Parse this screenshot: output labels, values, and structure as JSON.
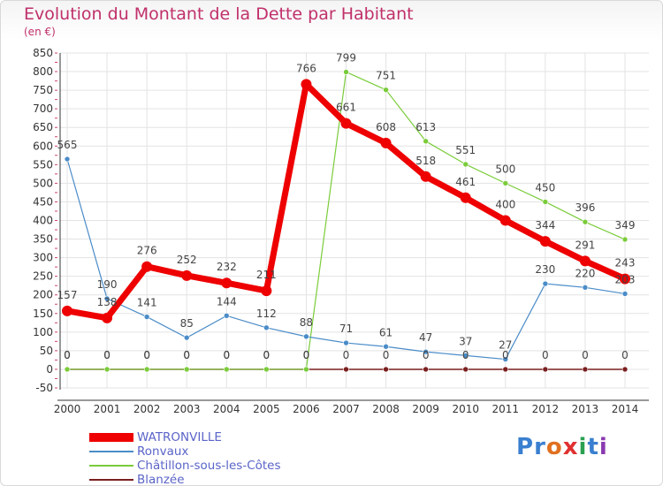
{
  "header": {
    "title": "Evolution du Montant de la Dette par Habitant",
    "subtitle": "(en €)"
  },
  "logo": {
    "letters": [
      "P",
      "r",
      "o",
      "x",
      "i",
      "t",
      "i"
    ],
    "colors": [
      "#3a7fd0",
      "#3a7fd0",
      "#e07020",
      "#e03030",
      "#2aa050",
      "#3a7fd0",
      "#8a3ab0"
    ]
  },
  "chart_data": {
    "type": "line",
    "title": "Evolution du Montant de la Dette par Habitant",
    "subtitle": "(en €)",
    "xlabel": "",
    "ylabel": "",
    "x": [
      "2000",
      "2001",
      "2002",
      "2003",
      "2004",
      "2005",
      "2006",
      "2007",
      "2008",
      "2009",
      "2010",
      "2011",
      "2012",
      "2013",
      "2014"
    ],
    "ylim": [
      -50,
      850
    ],
    "yticks": [
      -50,
      0,
      50,
      100,
      150,
      200,
      250,
      300,
      350,
      400,
      450,
      500,
      550,
      600,
      650,
      700,
      750,
      800,
      850
    ],
    "grid": true,
    "legend_position": "bottom-left",
    "series": [
      {
        "name": "WATRONVILLE",
        "color": "#ee0000",
        "values": [
          157,
          138,
          276,
          252,
          232,
          211,
          766,
          661,
          608,
          518,
          461,
          400,
          344,
          291,
          243
        ]
      },
      {
        "name": "Ronvaux",
        "color": "#4a8cc8",
        "values": [
          565,
          190,
          141,
          85,
          144,
          112,
          88,
          71,
          61,
          47,
          37,
          27,
          230,
          220,
          203
        ]
      },
      {
        "name": "Châtillon-sous-les-Côtes",
        "color": "#7acc3a",
        "values": [
          0,
          0,
          0,
          0,
          0,
          0,
          0,
          799,
          751,
          613,
          551,
          500,
          450,
          396,
          349
        ]
      },
      {
        "name": "Blanzée",
        "color": "#7a1f1f",
        "values": [
          0,
          0,
          0,
          0,
          0,
          0,
          0,
          0,
          0,
          0,
          0,
          0,
          0,
          0,
          0
        ]
      }
    ]
  }
}
